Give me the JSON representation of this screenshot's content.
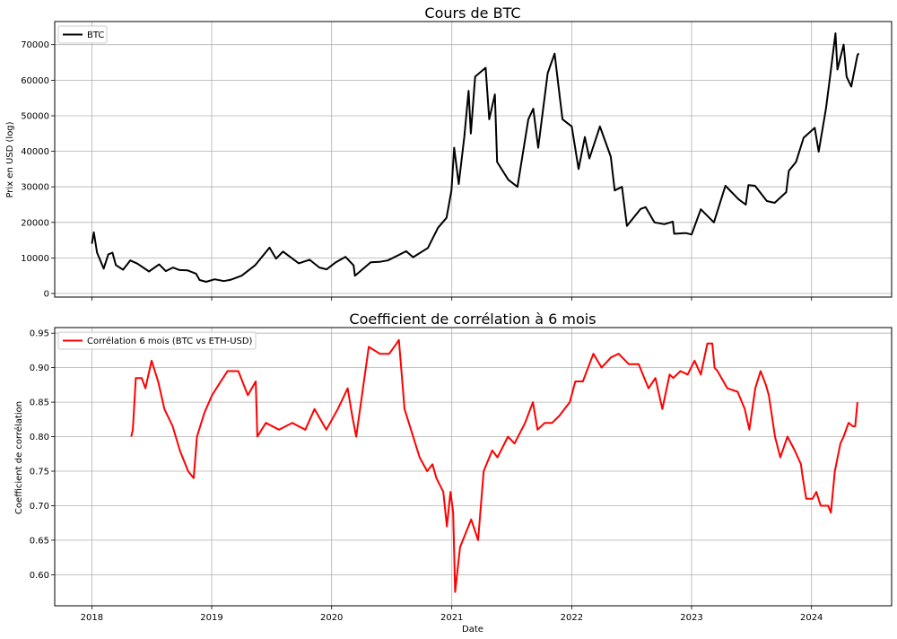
{
  "figure": {
    "xlabel": "Date"
  },
  "chart_data": [
    {
      "type": "line",
      "title": "Cours de BTC",
      "xlabel": "",
      "ylabel": "Prix en USD (log)",
      "xlim": [
        "2017-09-10",
        "2024-09-01"
      ],
      "ylim": [
        -1000,
        76500
      ],
      "yticks": [
        0,
        10000,
        20000,
        30000,
        40000,
        50000,
        60000,
        70000
      ],
      "xticks": [
        "2018-01-01",
        "2019-01-01",
        "2020-01-01",
        "2021-01-01",
        "2022-01-01",
        "2023-01-01",
        "2024-01-01"
      ],
      "xtick_labels": [
        "2018",
        "2019",
        "2020",
        "2021",
        "2022",
        "2023",
        "2024"
      ],
      "show_xtick_labels": false,
      "grid": true,
      "legend": "top-left",
      "series": [
        {
          "name": "BTC",
          "color": "#000000",
          "x": [
            "2018-01-01",
            "2018-01-07",
            "2018-01-17",
            "2018-02-06",
            "2018-02-20",
            "2018-03-05",
            "2018-03-15",
            "2018-04-06",
            "2018-04-28",
            "2018-05-20",
            "2018-06-24",
            "2018-07-25",
            "2018-08-14",
            "2018-09-05",
            "2018-09-25",
            "2018-10-20",
            "2018-11-14",
            "2018-11-25",
            "2018-12-15",
            "2019-01-10",
            "2019-02-07",
            "2019-03-01",
            "2019-04-02",
            "2019-05-14",
            "2019-06-26",
            "2019-07-16",
            "2019-08-06",
            "2019-09-23",
            "2019-10-26",
            "2019-11-25",
            "2019-12-17",
            "2020-01-14",
            "2020-02-12",
            "2020-03-08",
            "2020-03-12",
            "2020-04-29",
            "2020-05-25",
            "2020-06-20",
            "2020-07-27",
            "2020-08-15",
            "2020-09-05",
            "2020-10-20",
            "2020-11-20",
            "2020-12-16",
            "2020-12-31",
            "2021-01-08",
            "2021-01-22",
            "2021-02-08",
            "2021-02-21",
            "2021-02-28",
            "2021-03-13",
            "2021-04-14",
            "2021-04-25",
            "2021-05-12",
            "2021-05-19",
            "2021-06-22",
            "2021-07-20",
            "2021-08-22",
            "2021-09-06",
            "2021-09-21",
            "2021-10-20",
            "2021-11-10",
            "2021-11-26",
            "2021-12-04",
            "2022-01-01",
            "2022-01-22",
            "2022-02-10",
            "2022-02-24",
            "2022-03-28",
            "2022-04-30",
            "2022-05-12",
            "2022-06-03",
            "2022-06-18",
            "2022-07-30",
            "2022-08-14",
            "2022-09-10",
            "2022-10-10",
            "2022-11-05",
            "2022-11-09",
            "2022-12-15",
            "2023-01-01",
            "2023-01-29",
            "2023-03-10",
            "2023-04-14",
            "2023-05-24",
            "2023-06-15",
            "2023-06-23",
            "2023-07-13",
            "2023-08-18",
            "2023-09-11",
            "2023-10-16",
            "2023-10-24",
            "2023-11-15",
            "2023-12-08",
            "2024-01-11",
            "2024-01-23",
            "2024-02-14",
            "2024-02-28",
            "2024-03-14",
            "2024-03-20",
            "2024-04-08",
            "2024-04-17",
            "2024-05-01",
            "2024-05-20",
            "2024-05-24"
          ],
          "y": [
            14000,
            17200,
            11500,
            7000,
            11000,
            11500,
            8000,
            6700,
            9300,
            8400,
            6200,
            8200,
            6300,
            7300,
            6600,
            6500,
            5600,
            3800,
            3300,
            4000,
            3500,
            3900,
            5000,
            8000,
            12900,
            9800,
            11800,
            8500,
            9500,
            7300,
            6800,
            8800,
            10300,
            7900,
            5000,
            8800,
            8900,
            9300,
            11000,
            11900,
            10200,
            12800,
            18500,
            21300,
            29000,
            41000,
            30800,
            44000,
            57000,
            45000,
            61000,
            63500,
            49000,
            56000,
            37000,
            32000,
            30000,
            49000,
            52000,
            41000,
            62000,
            67500,
            55000,
            49000,
            47000,
            35000,
            44000,
            38000,
            47000,
            38500,
            29000,
            30000,
            19000,
            23800,
            24300,
            20000,
            19500,
            20200,
            16800,
            17000,
            16600,
            23700,
            20000,
            30300,
            26500,
            25000,
            30500,
            30300,
            26000,
            25500,
            28500,
            34500,
            37000,
            43800,
            46600,
            39900,
            52000,
            62000,
            73200,
            63000,
            70000,
            61000,
            58200,
            67000,
            67600
          ]
        }
      ]
    },
    {
      "type": "line",
      "title": "Coefficient de corrélation à 6 mois",
      "xlabel": "Date",
      "ylabel": "Coefficient de corrélation",
      "xlim": [
        "2017-09-10",
        "2024-09-01"
      ],
      "ylim": [
        0.555,
        0.958
      ],
      "yticks": [
        0.6,
        0.65,
        0.7,
        0.75,
        0.8,
        0.85,
        0.9,
        0.95
      ],
      "ytick_labels": [
        "0.60",
        "0.65",
        "0.70",
        "0.75",
        "0.80",
        "0.85",
        "0.90",
        "0.95"
      ],
      "xticks": [
        "2018-01-01",
        "2019-01-01",
        "2020-01-01",
        "2021-01-01",
        "2022-01-01",
        "2023-01-01",
        "2024-01-01"
      ],
      "xtick_labels": [
        "2018",
        "2019",
        "2020",
        "2021",
        "2022",
        "2023",
        "2024"
      ],
      "grid": true,
      "legend": "top-left",
      "series": [
        {
          "name": "Corrélation 6 mois (BTC vs ETH-USD)",
          "color": "#ff0000",
          "x": [
            "2018-05-01",
            "2018-05-06",
            "2018-05-15",
            "2018-06-02",
            "2018-06-13",
            "2018-07-02",
            "2018-07-22",
            "2018-08-10",
            "2018-09-04",
            "2018-09-26",
            "2018-10-21",
            "2018-11-07",
            "2018-11-17",
            "2018-12-10",
            "2019-01-02",
            "2019-01-22",
            "2019-02-18",
            "2019-03-23",
            "2019-04-21",
            "2019-05-15",
            "2019-05-20",
            "2019-06-15",
            "2019-07-25",
            "2019-09-03",
            "2019-10-13",
            "2019-11-10",
            "2019-12-16",
            "2020-01-20",
            "2020-02-19",
            "2020-03-04",
            "2020-03-16",
            "2020-04-23",
            "2020-05-27",
            "2020-06-24",
            "2020-07-17",
            "2020-07-24",
            "2020-08-10",
            "2020-09-25",
            "2020-10-18",
            "2020-11-03",
            "2020-11-15",
            "2020-12-06",
            "2020-12-17",
            "2020-12-28",
            "2021-01-05",
            "2021-01-11",
            "2021-01-26",
            "2021-02-12",
            "2021-03-01",
            "2021-03-22",
            "2021-04-08",
            "2021-05-04",
            "2021-05-20",
            "2021-06-21",
            "2021-07-11",
            "2021-08-12",
            "2021-09-05",
            "2021-09-19",
            "2021-10-11",
            "2021-11-02",
            "2021-11-24",
            "2021-12-26",
            "2022-01-12",
            "2022-02-04",
            "2022-03-08",
            "2022-04-02",
            "2022-05-01",
            "2022-05-24",
            "2022-06-24",
            "2022-07-24",
            "2022-08-23",
            "2022-09-13",
            "2022-10-04",
            "2022-10-26",
            "2022-11-06",
            "2022-11-28",
            "2022-12-20",
            "2023-01-10",
            "2023-01-29",
            "2023-02-18",
            "2023-03-05",
            "2023-03-12",
            "2023-03-21",
            "2023-04-20",
            "2023-05-21",
            "2023-06-12",
            "2023-06-26",
            "2023-07-14",
            "2023-07-30",
            "2023-08-15",
            "2023-08-24",
            "2023-09-12",
            "2023-09-28",
            "2023-10-20",
            "2023-11-11",
            "2023-11-30",
            "2023-12-04",
            "2023-12-16",
            "2024-01-04",
            "2024-01-16",
            "2024-01-29",
            "2024-02-21",
            "2024-02-29",
            "2024-03-12",
            "2024-03-29",
            "2024-04-08",
            "2024-04-23",
            "2024-05-06",
            "2024-05-13",
            "2024-05-20"
          ],
          "y": [
            0.8,
            0.81,
            0.885,
            0.885,
            0.87,
            0.91,
            0.88,
            0.84,
            0.815,
            0.78,
            0.75,
            0.74,
            0.8,
            0.835,
            0.86,
            0.875,
            0.895,
            0.895,
            0.86,
            0.88,
            0.8,
            0.82,
            0.81,
            0.82,
            0.81,
            0.84,
            0.81,
            0.84,
            0.87,
            0.83,
            0.8,
            0.93,
            0.92,
            0.92,
            0.935,
            0.94,
            0.84,
            0.77,
            0.75,
            0.76,
            0.74,
            0.72,
            0.67,
            0.72,
            0.69,
            0.575,
            0.64,
            0.66,
            0.68,
            0.65,
            0.75,
            0.78,
            0.77,
            0.8,
            0.79,
            0.82,
            0.85,
            0.81,
            0.82,
            0.82,
            0.83,
            0.85,
            0.88,
            0.88,
            0.92,
            0.9,
            0.915,
            0.92,
            0.905,
            0.905,
            0.87,
            0.885,
            0.84,
            0.89,
            0.885,
            0.895,
            0.89,
            0.91,
            0.89,
            0.935,
            0.935,
            0.9,
            0.895,
            0.87,
            0.865,
            0.84,
            0.81,
            0.87,
            0.895,
            0.875,
            0.86,
            0.8,
            0.77,
            0.8,
            0.78,
            0.76,
            0.745,
            0.71,
            0.71,
            0.72,
            0.7,
            0.7,
            0.69,
            0.75,
            0.79,
            0.8,
            0.82,
            0.815,
            0.815,
            0.85
          ]
        }
      ]
    }
  ]
}
